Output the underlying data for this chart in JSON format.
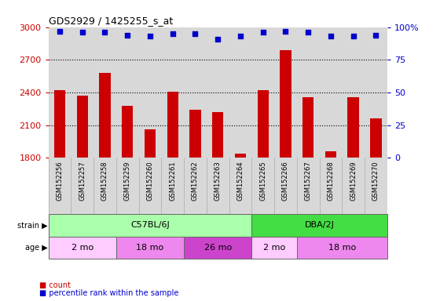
{
  "title": "GDS2929 / 1425255_s_at",
  "samples": [
    "GSM152256",
    "GSM152257",
    "GSM152258",
    "GSM152259",
    "GSM152260",
    "GSM152261",
    "GSM152262",
    "GSM152263",
    "GSM152264",
    "GSM152265",
    "GSM152266",
    "GSM152267",
    "GSM152268",
    "GSM152269",
    "GSM152270"
  ],
  "counts": [
    2420,
    2370,
    2580,
    2280,
    2060,
    2410,
    2240,
    2220,
    1840,
    2420,
    2790,
    2360,
    1860,
    2360,
    2160
  ],
  "percentile_ranks": [
    97,
    96,
    96,
    94,
    93,
    95,
    95,
    91,
    93,
    96,
    97,
    96,
    93,
    93,
    94
  ],
  "ylim_left": [
    1800,
    3000
  ],
  "ylim_right": [
    0,
    100
  ],
  "yticks_left": [
    1800,
    2100,
    2400,
    2700,
    3000
  ],
  "yticks_right": [
    0,
    25,
    50,
    75,
    100
  ],
  "bar_color": "#cc0000",
  "dot_color": "#0000cc",
  "strain_groups": [
    {
      "label": "C57BL/6J",
      "start": 0,
      "end": 8,
      "color": "#aaffaa"
    },
    {
      "label": "DBA/2J",
      "start": 9,
      "end": 14,
      "color": "#44dd44"
    }
  ],
  "age_groups": [
    {
      "label": "2 mo",
      "start": 0,
      "end": 2,
      "color": "#ffccff"
    },
    {
      "label": "18 mo",
      "start": 3,
      "end": 5,
      "color": "#ee88ee"
    },
    {
      "label": "26 mo",
      "start": 6,
      "end": 8,
      "color": "#dd44dd"
    },
    {
      "label": "2 mo",
      "start": 9,
      "end": 10,
      "color": "#ffccff"
    },
    {
      "label": "18 mo",
      "start": 11,
      "end": 14,
      "color": "#ee88ee"
    }
  ],
  "ylabel_left_color": "#cc0000",
  "ylabel_right_color": "#0000cc",
  "bg_color": "#d8d8d8",
  "xtick_bg_color": "#d8d8d8",
  "grid_color": "#000000",
  "label_count": "count",
  "label_percentile": "percentile rank within the sample"
}
